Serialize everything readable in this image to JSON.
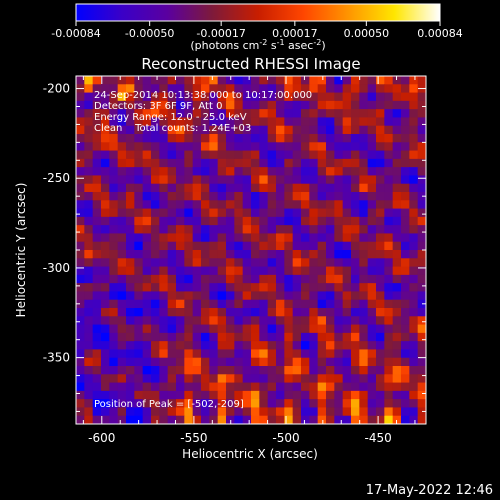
{
  "chart_data": {
    "type": "heatmap",
    "title": "Reconstructed RHESSI Image",
    "xlabel": "Heliocentric X (arcsec)",
    "ylabel": "Heliocentric Y (arcsec)",
    "x_ticks": [
      "-600",
      "-550",
      "-500",
      "-450"
    ],
    "x_tick_values": [
      -600,
      -550,
      -500,
      -450
    ],
    "y_ticks": [
      "-200",
      "-250",
      "-300",
      "-350"
    ],
    "y_tick_values": [
      -200,
      -250,
      -300,
      -350
    ],
    "xlim": [
      -614,
      -424
    ],
    "ylim": [
      -387,
      -193
    ],
    "colorbar": {
      "ticks": [
        "-0.00084",
        "-0.00050",
        "-0.00017",
        "0.00017",
        "0.00050",
        "0.00084"
      ],
      "tick_values": [
        -0.00084,
        -0.0005,
        -0.00017,
        0.00017,
        0.0005,
        0.00084
      ],
      "range": [
        -0.00084,
        0.00084
      ],
      "unit_main": "(photons cm",
      "unit_sup1": "-2",
      "unit_mid": " s",
      "unit_sup2": "-1",
      "unit_end": " asec",
      "unit_sup3": "-2",
      "unit_close": ")",
      "colormap": [
        "#0000ff",
        "#3a00c8",
        "#5a00a0",
        "#7e1a3a",
        "#c81e00",
        "#ff4600",
        "#ff9600",
        "#ffe600",
        "#ffffff"
      ]
    },
    "annotations": [
      "24-Sep-2014 10:13:38.000 to 10:17:00.000",
      "Detectors: 3F 6F 9F, Att 0",
      "Energy Range: 12.0 - 25.0 keV",
      "Clean    Total counts: 1.24E+03"
    ],
    "peak_label": "Position of Peak = [-502,-209]",
    "peak": {
      "x": -502,
      "y": -209
    }
  },
  "timestamp": "17-May-2022 12:46"
}
